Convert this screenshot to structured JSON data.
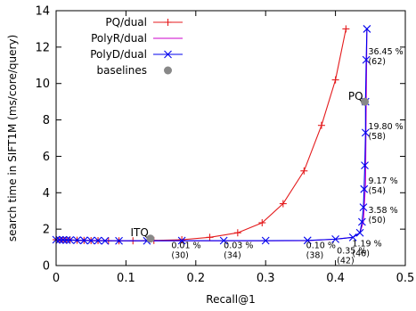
{
  "chart_data": {
    "type": "line",
    "xlabel": "Recall@1",
    "ylabel": "search time in SIFT1M (ms/core/query)",
    "xlim": [
      0,
      0.5
    ],
    "ylim": [
      0,
      14
    ],
    "xticks": [
      0,
      0.1,
      0.2,
      0.3,
      0.4,
      0.5
    ],
    "xtick_labels": [
      "0",
      "0.1",
      "0.2",
      "0.3",
      "0.4",
      "0.5"
    ],
    "yticks": [
      0,
      2,
      4,
      6,
      8,
      10,
      12,
      14
    ],
    "ytick_labels": [
      "0",
      "2",
      "4",
      "6",
      "8",
      "10",
      "12",
      "14"
    ],
    "grid": false,
    "legend_position": "top-left",
    "series": [
      {
        "name": "PQ/dual",
        "color": "#e41a1c",
        "marker": "plus",
        "x": [
          0.0,
          0.005,
          0.01,
          0.015,
          0.02,
          0.03,
          0.04,
          0.05,
          0.06,
          0.075,
          0.09,
          0.11,
          0.14,
          0.18,
          0.22,
          0.26,
          0.295,
          0.325,
          0.355,
          0.38,
          0.4,
          0.415
        ],
        "y": [
          1.42,
          1.41,
          1.41,
          1.4,
          1.4,
          1.39,
          1.38,
          1.37,
          1.37,
          1.36,
          1.36,
          1.36,
          1.38,
          1.42,
          1.55,
          1.8,
          2.35,
          3.4,
          5.2,
          7.7,
          10.2,
          13.0
        ]
      },
      {
        "name": "PolyR/dual",
        "color": "#cc00cc",
        "marker": "none",
        "x": [
          0.0,
          0.02,
          0.05,
          0.1,
          0.2,
          0.3,
          0.36,
          0.4,
          0.425,
          0.435,
          0.44,
          0.443,
          0.445
        ],
        "y": [
          1.42,
          1.4,
          1.38,
          1.36,
          1.36,
          1.36,
          1.37,
          1.45,
          1.55,
          1.8,
          2.4,
          4.5,
          13.0
        ]
      },
      {
        "name": "PolyD/dual",
        "color": "#0000ee",
        "marker": "x",
        "x": [
          0.0,
          0.005,
          0.01,
          0.015,
          0.02,
          0.03,
          0.04,
          0.05,
          0.06,
          0.07,
          0.09,
          0.13,
          0.18,
          0.24,
          0.3,
          0.36,
          0.4,
          0.425,
          0.435,
          0.438,
          0.44,
          0.441,
          0.442,
          0.443,
          0.443,
          0.444,
          0.445
        ],
        "y": [
          1.42,
          1.41,
          1.41,
          1.4,
          1.4,
          1.39,
          1.38,
          1.37,
          1.37,
          1.36,
          1.36,
          1.36,
          1.37,
          1.37,
          1.37,
          1.38,
          1.45,
          1.55,
          1.8,
          2.4,
          3.2,
          4.2,
          5.5,
          7.3,
          9.0,
          11.3,
          13.0
        ]
      }
    ],
    "baselines": {
      "name": "baselines",
      "color": "#888888",
      "points": [
        {
          "label": "ITQ",
          "x": 0.135,
          "y": 1.48
        },
        {
          "label": "PQ",
          "x": 0.442,
          "y": 9.0
        }
      ]
    },
    "annotations": [
      {
        "line1": "36.45 %",
        "line2": "(62)",
        "x": 0.447,
        "y": 11.6
      },
      {
        "line1": "19.80 %",
        "line2": "(58)",
        "x": 0.447,
        "y": 7.5
      },
      {
        "line1": "9.17 %",
        "line2": "(54)",
        "x": 0.447,
        "y": 4.5
      },
      {
        "line1": "3.58 %",
        "line2": "(50)",
        "x": 0.447,
        "y": 2.9
      },
      {
        "line1": "0.01 %",
        "line2": "(30)",
        "x": 0.165,
        "y": 0.95
      },
      {
        "line1": "0.03 %",
        "line2": "(34)",
        "x": 0.24,
        "y": 0.95
      },
      {
        "line1": "0.10 %",
        "line2": "(38)",
        "x": 0.358,
        "y": 0.95
      },
      {
        "line1": "0.35 %",
        "line2": "(42)",
        "x": 0.402,
        "y": 0.65
      },
      {
        "line1": "1.19 %",
        "line2": "(46)",
        "x": 0.424,
        "y": 1.05
      }
    ]
  }
}
